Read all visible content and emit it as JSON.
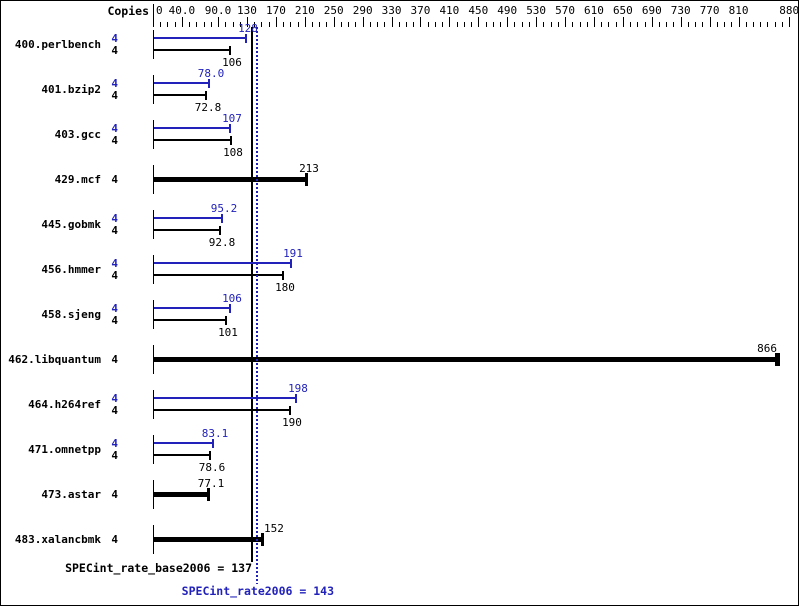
{
  "chart_data": {
    "type": "bar",
    "orientation": "horizontal",
    "title": "",
    "copies_header": "Copies",
    "axis": {
      "min": 0,
      "max": 882,
      "minor_tick_step": 10,
      "labeled_ticks": [
        {
          "value": 0,
          "label": "0"
        },
        {
          "value": 40,
          "label": "40.0"
        },
        {
          "value": 90,
          "label": "90.0"
        },
        {
          "value": 130,
          "label": "130"
        },
        {
          "value": 170,
          "label": "170"
        },
        {
          "value": 210,
          "label": "210"
        },
        {
          "value": 250,
          "label": "250"
        },
        {
          "value": 290,
          "label": "290"
        },
        {
          "value": 330,
          "label": "330"
        },
        {
          "value": 370,
          "label": "370"
        },
        {
          "value": 410,
          "label": "410"
        },
        {
          "value": 450,
          "label": "450"
        },
        {
          "value": 490,
          "label": "490"
        },
        {
          "value": 530,
          "label": "530"
        },
        {
          "value": 570,
          "label": "570"
        },
        {
          "value": 610,
          "label": "610"
        },
        {
          "value": 650,
          "label": "650"
        },
        {
          "value": 690,
          "label": "690"
        },
        {
          "value": 730,
          "label": "730"
        },
        {
          "value": 770,
          "label": "770"
        },
        {
          "value": 810,
          "label": "810"
        },
        {
          "value": 880,
          "label": "880"
        }
      ]
    },
    "series_names": {
      "peak": "SPECint_rate2006",
      "base": "SPECint_rate_base2006"
    },
    "colors": {
      "peak": "#2222bb",
      "base": "#000000",
      "background": "#ffffff"
    },
    "rows": [
      {
        "name": "400.perlbench",
        "copies": "4",
        "peak": 128,
        "peak_label": "128",
        "base": 106,
        "base_label": "106"
      },
      {
        "name": "401.bzip2",
        "copies": "4",
        "peak": 78.0,
        "peak_label": "78.0",
        "base": 72.8,
        "base_label": "72.8"
      },
      {
        "name": "403.gcc",
        "copies": "4",
        "peak": 107,
        "peak_label": "107",
        "base": 108,
        "base_label": "108"
      },
      {
        "name": "429.mcf",
        "copies": "4",
        "merged": true,
        "value": 213,
        "value_label": "213"
      },
      {
        "name": "445.gobmk",
        "copies": "4",
        "peak": 95.2,
        "peak_label": "95.2",
        "base": 92.8,
        "base_label": "92.8"
      },
      {
        "name": "456.hmmer",
        "copies": "4",
        "peak": 191,
        "peak_label": "191",
        "base": 180,
        "base_label": "180"
      },
      {
        "name": "458.sjeng",
        "copies": "4",
        "peak": 106,
        "peak_label": "106",
        "base": 101,
        "base_label": "101"
      },
      {
        "name": "462.libquantum",
        "copies": "4",
        "merged": true,
        "value": 866,
        "value_label": "866",
        "cap2": 862,
        "label_align": "right"
      },
      {
        "name": "464.h264ref",
        "copies": "4",
        "peak": 198,
        "peak_label": "198",
        "base": 190,
        "base_label": "190"
      },
      {
        "name": "471.omnetpp",
        "copies": "4",
        "peak": 83.1,
        "peak_label": "83.1",
        "base": 78.6,
        "base_label": "78.6"
      },
      {
        "name": "473.astar",
        "copies": "4",
        "merged": true,
        "value": 77.1,
        "value_label": "77.1"
      },
      {
        "name": "483.xalancbmk",
        "copies": "4",
        "merged": true,
        "value": 152,
        "value_label": "152",
        "label_align": "left"
      }
    ],
    "summary": {
      "base": {
        "text": "SPECint_rate_base2006 = 137",
        "value": 137
      },
      "peak": {
        "text": "SPECint_rate2006 = 143",
        "value": 143
      }
    }
  }
}
